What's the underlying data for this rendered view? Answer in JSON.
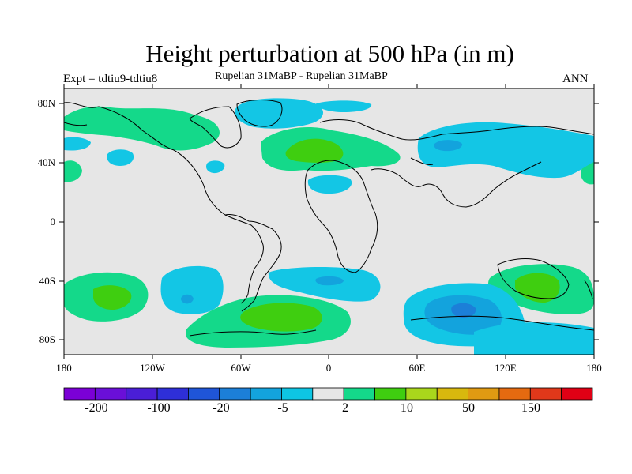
{
  "title": "Height perturbation at 500 hPa (in m)",
  "experiment_label": "Expt = tdtiu9-tdtiu8",
  "comparison_label": "Rupelian  31MaBP - Rupelian  31MaBP",
  "season_label": "ANN",
  "lat_ticks": [
    "80N",
    "40N",
    "0",
    "40S",
    "80S"
  ],
  "lon_ticks": [
    "180",
    "120W",
    "60W",
    "0",
    "60E",
    "120E",
    "180"
  ],
  "colorbar": {
    "colors": [
      "#7b00d6",
      "#6a0fd8",
      "#4a1ed6",
      "#2e2fd8",
      "#1f55d8",
      "#1c7fd8",
      "#13a3dd",
      "#0ec5e3",
      "#e6e6e6",
      "#14d98a",
      "#3fce10",
      "#a9d61c",
      "#d8b80e",
      "#e09a12",
      "#e56a10",
      "#e0381a",
      "#e00015"
    ],
    "labels": [
      "-200",
      "-100",
      "-20",
      "-5",
      "2",
      "10",
      "50",
      "150"
    ]
  },
  "colors": {
    "ocean_background": "#e6e6e6",
    "negative_weak": "#13c6e5",
    "negative_moderate": "#13a3dd",
    "positive_weak": "#14d98a",
    "positive_moderate": "#3fce10"
  }
}
